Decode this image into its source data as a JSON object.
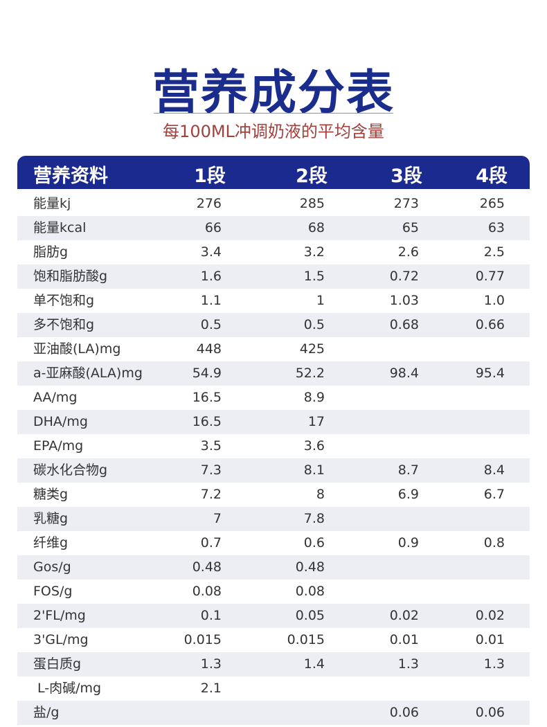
{
  "header": {
    "title": "营养成分表",
    "subtitle": "每100ML冲调奶液的平均含量"
  },
  "table": {
    "columns": [
      "营养资料",
      "1段",
      "2段",
      "3段",
      "4段"
    ],
    "rows": [
      [
        "能量kj",
        "276",
        "285",
        "273",
        "265"
      ],
      [
        "能量kcal",
        "66",
        "68",
        "65",
        "63"
      ],
      [
        "脂肪g",
        "3.4",
        "3.2",
        "2.6",
        "2.5"
      ],
      [
        "饱和脂肪酸g",
        "1.6",
        "1.5",
        "0.72",
        "0.77"
      ],
      [
        "单不饱和g",
        "1.1",
        "1",
        "1.03",
        "1.0"
      ],
      [
        "多不饱和g",
        "0.5",
        "0.5",
        "0.68",
        "0.66"
      ],
      [
        "亚油酸(LA)mg",
        "448",
        "425",
        null,
        null
      ],
      [
        "a-亚麻酸(ALA)mg",
        "54.9",
        "52.2",
        "98.4",
        "95.4"
      ],
      [
        "AA/mg",
        "16.5",
        "8.9",
        null,
        null
      ],
      [
        "DHA/mg",
        "16.5",
        "17",
        null,
        null
      ],
      [
        "EPA/mg",
        "3.5",
        "3.6",
        null,
        null
      ],
      [
        "碳水化合物g",
        "7.3",
        "8.1",
        "8.7",
        "8.4"
      ],
      [
        "糖类g",
        "7.2",
        "8",
        "6.9",
        "6.7"
      ],
      [
        "乳糖g",
        "7",
        "7.8",
        null,
        null
      ],
      [
        "纤维g",
        "0.7",
        "0.6",
        "0.9",
        "0.8"
      ],
      [
        "Gos/g",
        "0.48",
        "0.48",
        null,
        null
      ],
      [
        "FOS/g",
        "0.08",
        "0.08",
        null,
        null
      ],
      [
        "2'FL/mg",
        "0.1",
        "0.05",
        "0.02",
        "0.02"
      ],
      [
        "3'GL/mg",
        "0.015",
        "0.015",
        "0.01",
        "0.01"
      ],
      [
        "蛋白质g",
        "1.3",
        "1.4",
        "1.3",
        "1.3"
      ],
      [
        " L-肉碱/mg",
        "2.1",
        null,
        null,
        null
      ],
      [
        "盐/g",
        null,
        null,
        "0.06",
        "0.06"
      ]
    ]
  }
}
